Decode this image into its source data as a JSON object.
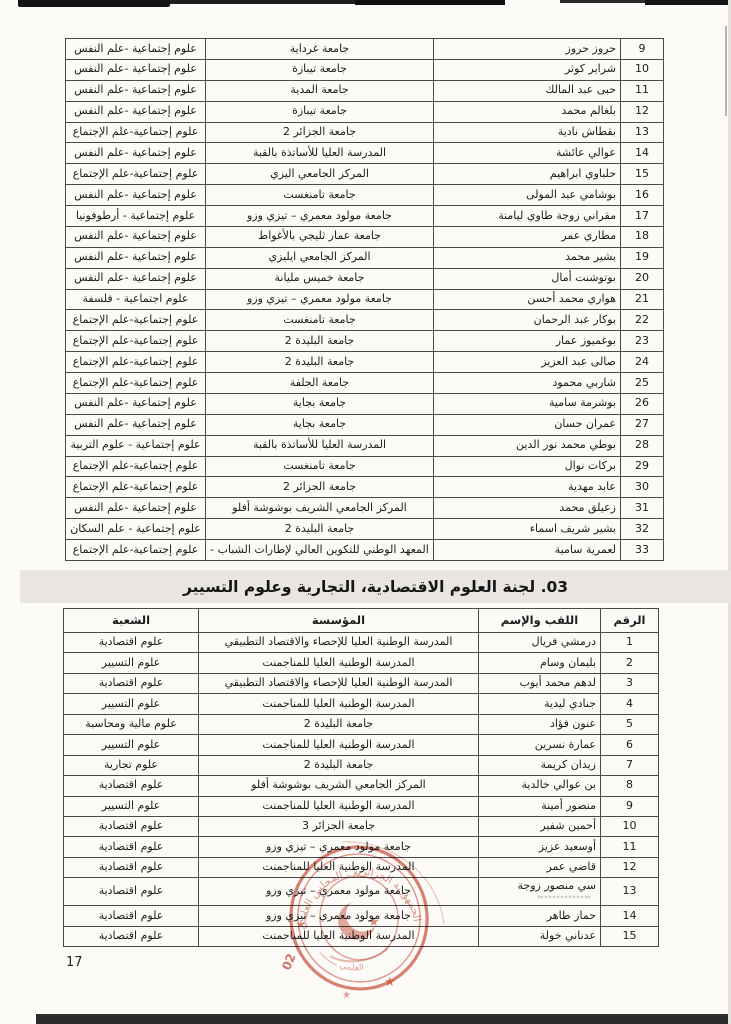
{
  "page": {
    "number": "17"
  },
  "section_heading": "03. لجنة العلوم الاقتصادية، التجارية وعلوم التسيير",
  "table1": {
    "rows": [
      {
        "num": "9",
        "name": "حروز حروز",
        "institution": "جامعة غرداية",
        "specialty": "علوم إجتماعية -علم النفس"
      },
      {
        "num": "10",
        "name": "شراير كوثر",
        "institution": "جامعة تيبازة",
        "specialty": "علوم إجتماعية -علم النفس"
      },
      {
        "num": "11",
        "name": "حبى عبد المالك",
        "institution": "جامعة المدية",
        "specialty": "علوم إجتماعية -علم النفس"
      },
      {
        "num": "12",
        "name": "بلغالم محمد",
        "institution": "جامعة تيبازة",
        "specialty": "علوم إجتماعية -علم النفس"
      },
      {
        "num": "13",
        "name": "بقطاش نادية",
        "institution": "جامعة الجزائر 2",
        "specialty": "علوم إجتماعية-علم الإجتماع"
      },
      {
        "num": "14",
        "name": "عوالي عائشة",
        "institution": "المدرسة العليا للأساتذة بالقبة",
        "specialty": "علوم إجتماعية -علم النفس"
      },
      {
        "num": "15",
        "name": "حلباوي ابراهيم",
        "institution": "المركز الجامعي اليزي",
        "specialty": "علوم إجتماعية-علم الإجتماع"
      },
      {
        "num": "16",
        "name": "بوشامي عبد المولى",
        "institution": "جامعة تامنغست",
        "specialty": "علوم إجتماعية -علم النفس"
      },
      {
        "num": "17",
        "name": "مقراني زوجة طاوي ليامنة",
        "institution": "جامعة مولود معمري – تيزي وزو",
        "specialty": "علوم إجتماعية - أرطوفونيا"
      },
      {
        "num": "18",
        "name": "مطاري عمر",
        "institution": "جامعة عمار ثليجي بالأغواط",
        "specialty": "علوم إجتماعية -علم النفس"
      },
      {
        "num": "19",
        "name": "بشير محمد",
        "institution": "المركز الجامعي ايليزي",
        "specialty": "علوم إجتماعية -علم النفس"
      },
      {
        "num": "20",
        "name": "بوتوشنت أمال",
        "institution": "جامعة خميس مليانة",
        "specialty": "علوم إجتماعية -علم النفس"
      },
      {
        "num": "21",
        "name": "هواري محمد أحسن",
        "institution": "جامعة مولود معمري – تيزي وزو",
        "specialty": "علوم اجتماعية - فلسفة"
      },
      {
        "num": "22",
        "name": "بوكار عبد الرحمان",
        "institution": "جامعة تامنغست",
        "specialty": "علوم إجتماعية-علم الإجتماع"
      },
      {
        "num": "23",
        "name": "بوغميوز عمار",
        "institution": "جامعة البليدة 2",
        "specialty": "علوم إجتماعية-علم الإجتماع"
      },
      {
        "num": "24",
        "name": "صالى عبد العزيز",
        "institution": "جامعة البليدة 2",
        "specialty": "علوم إجتماعية-علم الإجتماع"
      },
      {
        "num": "25",
        "name": "شاربي محمود",
        "institution": "جامعة الجلفة",
        "specialty": "علوم إجتماعية-علم الإجتماع"
      },
      {
        "num": "26",
        "name": "بوشرمة سامية",
        "institution": "جامعة بجاية",
        "specialty": "علوم إجتماعية -علم النفس"
      },
      {
        "num": "27",
        "name": "عمران حسان",
        "institution": "جامعة بجاية",
        "specialty": "علوم إجتماعية -علم النفس"
      },
      {
        "num": "28",
        "name": "بوطي محمد نور الدين",
        "institution": "المدرسة العليا للأساتذة بالقبة",
        "specialty": "علوم إجتماعية - علوم التربية"
      },
      {
        "num": "29",
        "name": "بركات نوال",
        "institution": "جامعة تامنغست",
        "specialty": "علوم إجتماعية-علم الإجتماع"
      },
      {
        "num": "30",
        "name": "عابد مهدية",
        "institution": "جامعة الجزائر 2",
        "specialty": "علوم إجتماعية-علم الإجتماع"
      },
      {
        "num": "31",
        "name": "زعيلق محمد",
        "institution": "المركز الجامعي الشريف بوشوشة أفلو",
        "specialty": "علوم إجتماعية -علم النفس"
      },
      {
        "num": "32",
        "name": "بشير شريف اسماء",
        "institution": "جامعة البليدة 2",
        "specialty": "علوم إجتماعية - علم السكان"
      },
      {
        "num": "33",
        "name": "لعمرية سامية",
        "institution": "المعهد الوطني للتكوين العالي لإطارات الشباب -",
        "specialty": "علوم إجتماعية-علم الإجتماع"
      }
    ]
  },
  "table2": {
    "headers": {
      "num": "الرقم",
      "name": "اللقب والإسم",
      "institution": "المؤسسة",
      "specialty": "الشعبة"
    },
    "rows": [
      {
        "num": "1",
        "name": "درمشي فريال",
        "institution": "المدرسة الوطنية العليا للإحصاء والاقتصاد التطبيقي",
        "specialty": "علوم اقتصادية"
      },
      {
        "num": "2",
        "name": "بليمان وسام",
        "institution": "المدرسة الوطنية العليا للمناجمنت",
        "specialty": "علوم التسيير"
      },
      {
        "num": "3",
        "name": "لدهم محمد أيوب",
        "institution": "المدرسة الوطنية العليا للإحصاء والاقتصاد التطبيقي",
        "specialty": "علوم اقتصادية"
      },
      {
        "num": "4",
        "name": "جنادي ليدية",
        "institution": "المدرسة الوطنية العليا للمناجمنت",
        "specialty": "علوم التسيير"
      },
      {
        "num": "5",
        "name": "عنون فؤاد",
        "institution": "جامعة البليدة 2",
        "specialty": "علوم مالية ومحاسبة"
      },
      {
        "num": "6",
        "name": "عمارة نسرين",
        "institution": "المدرسة الوطنية العليا للمناجمنت",
        "specialty": "علوم التسيير"
      },
      {
        "num": "7",
        "name": "زيدان كريمة",
        "institution": "جامعة البليدة 2",
        "specialty": "علوم تجارية"
      },
      {
        "num": "8",
        "name": "بن عوالي خالدية",
        "institution": "المركز الجامعي الشريف بوشوشة أفلو",
        "specialty": "علوم اقتصادية"
      },
      {
        "num": "9",
        "name": "منصور أمينة",
        "institution": "المدرسة الوطنية العليا للمناجمنت",
        "specialty": "علوم التسيير"
      },
      {
        "num": "10",
        "name": "أحمين شفير",
        "institution": "جامعة الجزائر 3",
        "specialty": "علوم اقتصادية"
      },
      {
        "num": "11",
        "name": "أوسعيد عزيز",
        "institution": "جامعة مولود معمري – تيزي وزو",
        "specialty": "علوم اقتصادية"
      },
      {
        "num": "12",
        "name": "قاضي عمر",
        "institution": "المدرسة الوطنية العليا للمناجمنت",
        "specialty": "علوم اقتصادية"
      },
      {
        "num": "13",
        "name": "سي منصور زوجة",
        "institution": "جامعة مولود معمري – تيزي وزو",
        "specialty": "علوم اقتصادية"
      },
      {
        "num": "14",
        "name": "حماز طاهر",
        "institution": "جامعة مولود معمري – تيزي وزو",
        "specialty": "علوم اقتصادية"
      },
      {
        "num": "15",
        "name": "عدناني خولة",
        "institution": "المدرسة الوطنية العليا للمناجمنت",
        "specialty": "علوم اقتصادية"
      }
    ]
  },
  "stamp": {
    "color": "#c6452f",
    "text_fragments": [
      "العلمي",
      "02"
    ]
  }
}
